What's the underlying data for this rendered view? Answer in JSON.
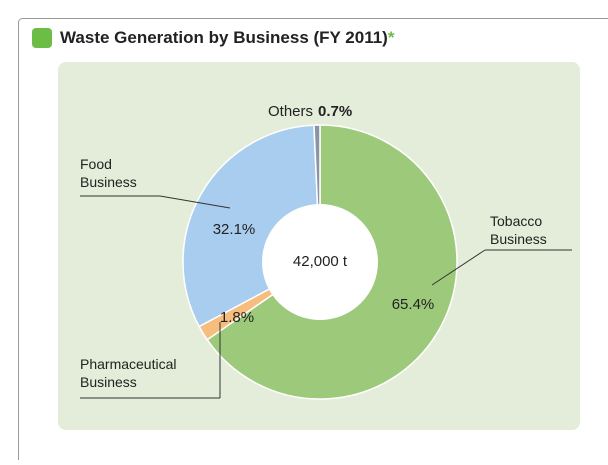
{
  "chart_data": {
    "type": "donut",
    "title": "Waste Generation by Business (FY 2011)",
    "title_note": "*",
    "total": {
      "value": 42000,
      "label": "42,000 t"
    },
    "categories": [
      "Tobacco Business",
      "Pharmaceutical Business",
      "Food Business",
      "Others"
    ],
    "values": [
      65.4,
      1.8,
      32.1,
      0.7
    ],
    "value_labels": [
      "65.4%",
      "1.8%",
      "32.1%",
      "0.7%"
    ],
    "colors": [
      "#9dc97b",
      "#f6bd7e",
      "#a9cdee",
      "#8c93a3"
    ]
  }
}
